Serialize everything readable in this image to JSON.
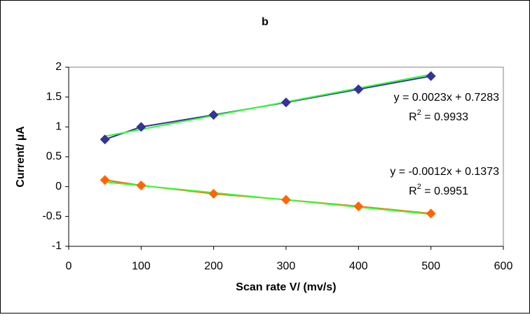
{
  "chart_data": {
    "type": "line",
    "title": "b",
    "x_label": "Scan rate V/ (mv/s)",
    "y_label": "Current/ µA",
    "x": [
      50,
      100,
      200,
      300,
      400,
      500
    ],
    "series": [
      {
        "color": "#333399",
        "values": [
          0.79,
          1.0,
          1.2,
          1.41,
          1.63,
          1.85
        ],
        "trend": {
          "color": "#33ff33",
          "slope": 0.0023,
          "intercept": 0.7283,
          "equation": "y = 0.0023x + 0.7283",
          "r2_base": "R",
          "r2_sup": "2",
          "r2_rest": " = 0.9933"
        }
      },
      {
        "color": "#ff6600",
        "values": [
          0.11,
          0.02,
          -0.12,
          -0.22,
          -0.33,
          -0.45
        ],
        "trend": {
          "color": "#33ff33",
          "slope": -0.0012,
          "intercept": 0.1373,
          "equation": "y = -0.0012x + 0.1373",
          "r2_base": "R",
          "r2_sup": "2",
          "r2_rest": " = 0.9951"
        }
      }
    ],
    "xlim": [
      0,
      600
    ],
    "xticks": [
      0,
      100,
      200,
      300,
      400,
      500,
      600
    ],
    "ylim": [
      -1,
      2
    ],
    "yticks": [
      -1,
      -0.5,
      0,
      0.5,
      1,
      1.5,
      2
    ],
    "grid": false
  }
}
